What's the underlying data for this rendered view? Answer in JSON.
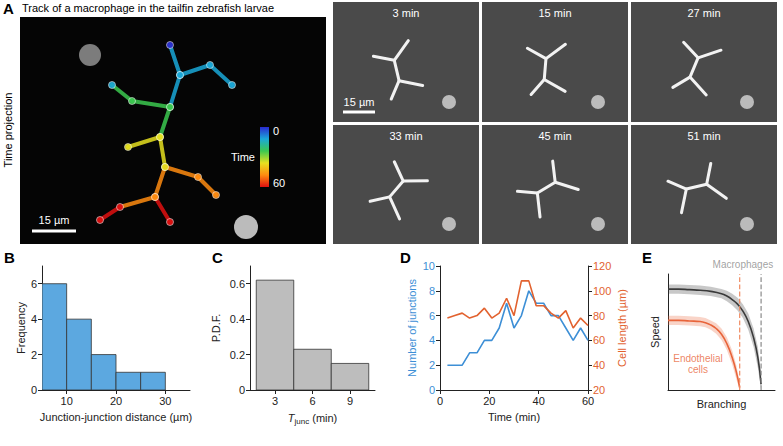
{
  "images": {
    "panel": "A",
    "title": "Track of a macrophage in the tailfin zebrafish larvae",
    "side_label": "Time projection",
    "scale_bar": "15 µm",
    "colorbar": {
      "label": "Time",
      "range": [
        0,
        60
      ],
      "ticks": [
        0,
        60
      ],
      "colors": [
        "#2a2ad0",
        "#1aa8d8",
        "#3cc850",
        "#e6e020",
        "#ff8c10",
        "#e01010"
      ]
    },
    "frames": [
      "3 min",
      "15 min",
      "27 min",
      "33 min",
      "45 min",
      "51 min"
    ],
    "frame_scale_bar": "15 µm"
  },
  "chart_data": [
    {
      "panel": "B",
      "type": "histogram",
      "bins": [
        5,
        10,
        15,
        20,
        25,
        30
      ],
      "counts": [
        6,
        4,
        2,
        1,
        1
      ],
      "color": "#5ca8e0",
      "xlabel": "Junction-junction distance (µm)",
      "ylabel": "Frequency",
      "xlim": [
        5,
        35
      ],
      "xticks": [
        10,
        20,
        30
      ],
      "ylim": [
        0,
        7
      ],
      "yticks": [
        0,
        2,
        4,
        6
      ],
      "grid": false
    },
    {
      "panel": "C",
      "type": "histogram",
      "bins": [
        1.5,
        4.5,
        7.5,
        10.5
      ],
      "counts": [
        0.62,
        0.23,
        0.15
      ],
      "color": "#bdbdbd",
      "xlabel": "Tjunc (min)",
      "xlabel_subscript": "junc",
      "ylabel": "P.D.F.",
      "xlim": [
        1,
        11
      ],
      "xticks": [
        3,
        6,
        9
      ],
      "ylim": [
        0,
        0.7
      ],
      "yticks": [
        0,
        0.2,
        0.4,
        0.6
      ],
      "grid": false
    },
    {
      "panel": "D",
      "type": "line",
      "x": [
        3,
        6,
        9,
        12,
        15,
        18,
        21,
        24,
        27,
        30,
        33,
        36,
        39,
        42,
        45,
        48,
        51,
        54,
        57,
        60
      ],
      "series": [
        {
          "color": "#3d8fd6",
          "marker": "none",
          "values": [
            2,
            2,
            2,
            3,
            3,
            4,
            4,
            5,
            7,
            5,
            6,
            8,
            7,
            7,
            6,
            6,
            5,
            4,
            5,
            4
          ]
        },
        {
          "color": "#e2622f",
          "marker": "none",
          "axis": "y2",
          "values": [
            78,
            80,
            82,
            78,
            80,
            86,
            78,
            82,
            94,
            80,
            108,
            108,
            88,
            88,
            82,
            78,
            84,
            70,
            78,
            72
          ]
        }
      ],
      "xlabel": "Time (min)",
      "ylabel": "Number of junctions",
      "y2label": "Cell length (µm)",
      "xlim": [
        0,
        60
      ],
      "xticks": [
        0,
        20,
        40,
        60
      ],
      "ylim": [
        0,
        10
      ],
      "yticks": [
        0,
        2,
        4,
        6,
        8,
        10
      ],
      "y2lim": [
        20,
        120
      ],
      "y2ticks": [
        20,
        40,
        60,
        80,
        100,
        120
      ],
      "grid": false
    },
    {
      "panel": "E",
      "type": "line",
      "xlabel": "Branching",
      "ylabel": "Speed",
      "tick_labels": false,
      "xlim": [
        0,
        1
      ],
      "ylim": [
        0,
        1
      ],
      "grid": false,
      "series": [
        {
          "color": "#3a3a3a",
          "x": [
            0,
            0.1,
            0.2,
            0.3,
            0.4,
            0.5,
            0.55,
            0.6,
            0.65,
            0.7,
            0.75,
            0.8,
            0.84,
            0.87
          ],
          "values": [
            0.87,
            0.87,
            0.865,
            0.86,
            0.85,
            0.83,
            0.81,
            0.78,
            0.74,
            0.68,
            0.59,
            0.45,
            0.28,
            0.05
          ],
          "upper": [
            0.91,
            0.91,
            0.905,
            0.9,
            0.89,
            0.87,
            0.855,
            0.83,
            0.795,
            0.74,
            0.66,
            0.53,
            0.37,
            0.14
          ],
          "lower": [
            0.83,
            0.83,
            0.825,
            0.82,
            0.81,
            0.79,
            0.765,
            0.73,
            0.685,
            0.62,
            0.52,
            0.37,
            0.19,
            0
          ]
        },
        {
          "color": "#e8643a",
          "x": [
            0,
            0.1,
            0.2,
            0.3,
            0.35,
            0.4,
            0.45,
            0.5,
            0.55,
            0.6,
            0.64,
            0.67
          ],
          "values": [
            0.6,
            0.6,
            0.595,
            0.59,
            0.58,
            0.56,
            0.53,
            0.48,
            0.4,
            0.28,
            0.15,
            0.02
          ],
          "upper": [
            0.64,
            0.64,
            0.635,
            0.63,
            0.62,
            0.6,
            0.575,
            0.53,
            0.455,
            0.34,
            0.21,
            0.07
          ],
          "lower": [
            0.56,
            0.56,
            0.555,
            0.55,
            0.54,
            0.52,
            0.485,
            0.43,
            0.345,
            0.22,
            0.09,
            0
          ]
        }
      ],
      "vlines": [
        {
          "x": 0.67,
          "color": "#f08a60"
        },
        {
          "x": 0.87,
          "color": "#8a8a8a"
        }
      ],
      "annotations": [
        {
          "text": "Macrophages",
          "x": 0.7,
          "y": 1.08,
          "color": "#8a8a8a"
        },
        {
          "text": "Endothelial cells",
          "x": 0.28,
          "y": 0.22,
          "color": "#e8643a"
        }
      ]
    }
  ]
}
